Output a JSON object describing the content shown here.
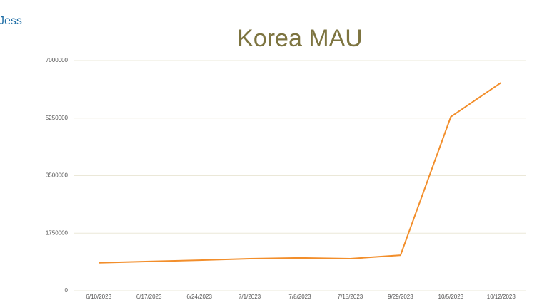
{
  "header": {
    "user": "Jess"
  },
  "chart_data": {
    "type": "line",
    "title": "Korea MAU",
    "categories": [
      "6/10/2023",
      "6/17/2023",
      "6/24/2023",
      "7/1/2023",
      "7/8/2023",
      "7/15/2023",
      "9/29/2023",
      "10/5/2023",
      "10/12/2023"
    ],
    "series": [
      {
        "name": "Korea MAU",
        "color": "#f28e2b",
        "values": [
          850000,
          890000,
          930000,
          975000,
          1000000,
          975000,
          1080000,
          5290000,
          6330000
        ]
      }
    ],
    "ylim": [
      0,
      7000000
    ],
    "yticks": [
      0,
      1750000,
      3500000,
      5250000,
      7000000
    ],
    "grid": true
  }
}
